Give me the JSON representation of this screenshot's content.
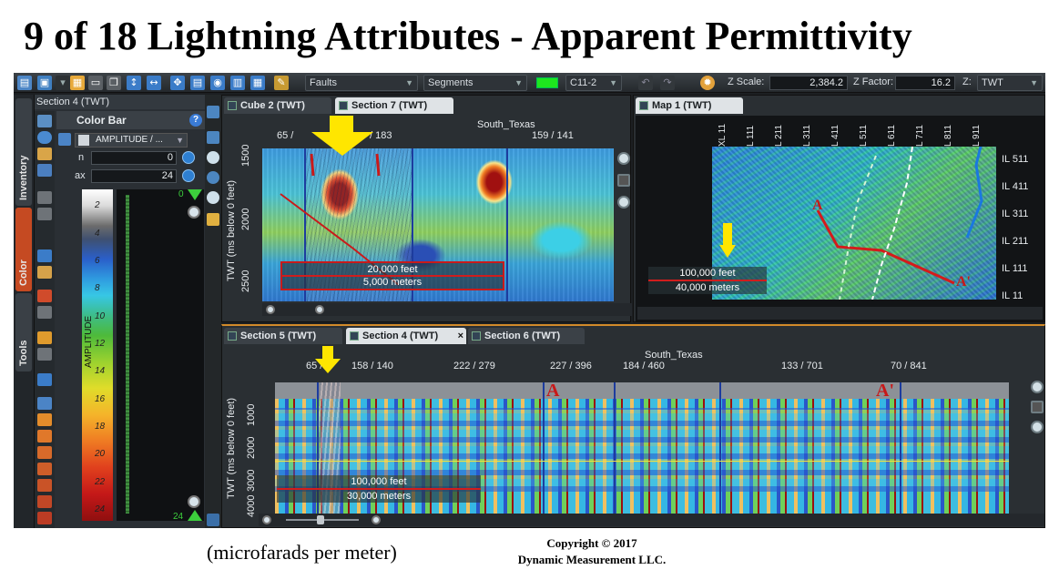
{
  "slide": {
    "title": "9 of 18 Lightning Attributes - Apparent Permittivity",
    "caption": "(microfarads per meter)",
    "copyright_line1": "Copyright  © 2017",
    "copyright_line2": "Dynamic Measurement LLC."
  },
  "toolbar": {
    "faults_combo": "Faults",
    "segments_combo": "Segments",
    "color_swatch": "#1ee61e",
    "horizon_combo": "C11-2",
    "z_scale_label": "Z Scale:",
    "z_scale_value": "2,384.2",
    "z_factor_label": "Z Factor:",
    "z_factor_value": "16.2",
    "z_domain_label": "Z:",
    "z_domain_value": "TWT"
  },
  "left_panel": {
    "title": "Section 4 (TWT)",
    "vertical_tabs": [
      "Inventory",
      "Color",
      "Tools"
    ],
    "color_bar_header": "Color Bar",
    "help_icon": "?",
    "attribute_select": "AMPLITUDE / ...",
    "min_label": "n",
    "min_value": "0",
    "max_label": "ax",
    "max_value": "24",
    "colorbar_ticks": [
      "2",
      "4",
      "6",
      "8",
      "10",
      "12",
      "14",
      "16",
      "18",
      "20",
      "22",
      "24"
    ],
    "colorbar_axis": "AMPLITUDE",
    "top_marker": "0",
    "bottom_marker": "24"
  },
  "viewer_top_left": {
    "tabs": [
      {
        "label": "Cube 2 (TWT)",
        "active": false
      },
      {
        "label": "Section 7 (TWT)",
        "active": true
      }
    ],
    "survey_label": "South_Texas",
    "x_ticks": [
      "65 /",
      "/ 183",
      "159 / 141"
    ],
    "y_axis_title": "TWT (ms below 0 feet)",
    "y_ticks": [
      "1500",
      "2000",
      "2500"
    ],
    "scale_feet": "20,000 feet",
    "scale_meters": "5,000 meters"
  },
  "viewer_top_right": {
    "tabs": [
      {
        "label": "Map 1 (TWT)",
        "active": true
      }
    ],
    "xl_labels": [
      "XL 11",
      "L 111",
      "L 211",
      "L 311",
      "L 411",
      "L 511",
      "L 611",
      "L 711",
      "L 811",
      "L 911"
    ],
    "il_labels": [
      "IL 511",
      "IL 411",
      "IL 311",
      "IL 211",
      "IL 111",
      "IL 11"
    ],
    "scale_feet": "100,000 feet",
    "scale_meters": "40,000 meters",
    "marker_a": "A",
    "marker_a_prime": "A'"
  },
  "viewer_bottom": {
    "tabs": [
      {
        "label": "Section 5 (TWT)",
        "active": false
      },
      {
        "label": "Section 4 (TWT)",
        "active": true
      },
      {
        "label": "Section 6 (TWT)",
        "active": false
      }
    ],
    "close_glyph": "×",
    "survey_label": "South_Texas",
    "x_ticks": [
      "65 /",
      "158 / 140",
      "222 / 279",
      "227 / 396",
      "184 / 460",
      "133 / 701",
      "70 / 841"
    ],
    "y_axis_title": "TWT (ms below 0 feet)",
    "y_ticks": [
      "1000",
      "2000",
      "3000",
      "4000"
    ],
    "scale_feet": "100,000 feet",
    "scale_meters": "30,000 meters",
    "marker_a": "A",
    "marker_a_prime": "A'"
  }
}
